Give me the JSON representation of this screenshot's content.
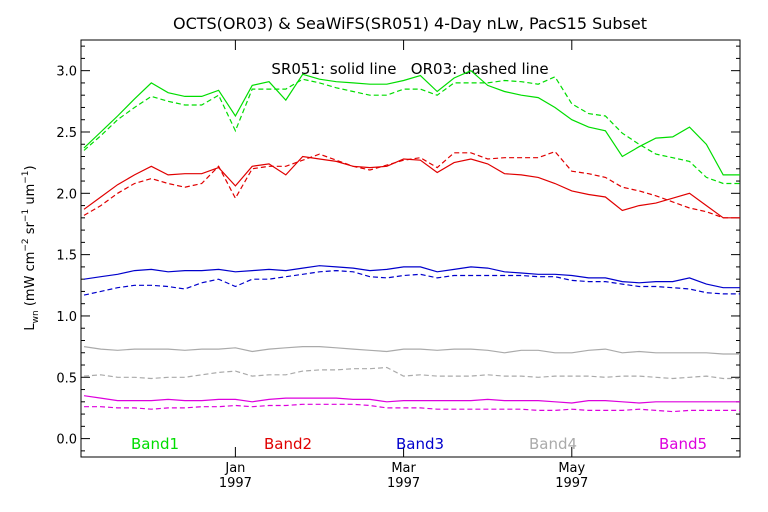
{
  "chart_data": {
    "type": "line",
    "title": "OCTS(OR03) & SeaWiFS(SR051) 4-Day nLw, PacS15 Subset",
    "annotation": "SR051: solid line   OR03: dashed line",
    "ylabel": "L_wn (mW cm^-2 sr^-1 um^-1)",
    "ylabel_parts": {
      "main": "L",
      "sub": "wn",
      "unit_open": " (mW cm",
      "exp1": "−2",
      "mid1": " sr",
      "exp2": "−1",
      "mid2": " um",
      "exp3": "−1",
      "unit_close": ")"
    },
    "ylim": [
      -0.15,
      3.25
    ],
    "yticks": [
      "0.0",
      "0.5",
      "1.0",
      "1.5",
      "2.0",
      "2.5",
      "3.0"
    ],
    "ytick_values": [
      0.0,
      0.5,
      1.0,
      1.5,
      2.0,
      2.5,
      3.0
    ],
    "xlim": [
      0,
      39
    ],
    "xticks": [
      {
        "label": "Jan",
        "year": "1997",
        "x": 9
      },
      {
        "label": "Mar",
        "year": "1997",
        "x": 19
      },
      {
        "label": "May",
        "year": "1997",
        "x": 29
      }
    ],
    "x": [
      0,
      1,
      2,
      3,
      4,
      5,
      6,
      7,
      8,
      9,
      10,
      11,
      12,
      13,
      14,
      15,
      16,
      17,
      18,
      19,
      20,
      21,
      22,
      23,
      24,
      25,
      26,
      27,
      28,
      29,
      30,
      31,
      32,
      33,
      34,
      35,
      36,
      37,
      38,
      39
    ],
    "series": [
      {
        "name": "Band1",
        "color": "#00dd00",
        "solid": [
          2.37,
          2.5,
          2.63,
          2.77,
          2.9,
          2.82,
          2.79,
          2.79,
          2.84,
          2.63,
          2.88,
          2.91,
          2.76,
          2.97,
          2.93,
          2.91,
          2.9,
          2.89,
          2.89,
          2.92,
          2.96,
          2.83,
          2.94,
          3.0,
          2.88,
          2.83,
          2.8,
          2.78,
          2.7,
          2.6,
          2.54,
          2.51,
          2.3,
          2.38,
          2.45,
          2.46,
          2.54,
          2.4,
          2.15,
          2.15
        ],
        "dashed": [
          2.35,
          2.47,
          2.6,
          2.7,
          2.79,
          2.75,
          2.72,
          2.72,
          2.8,
          2.51,
          2.85,
          2.85,
          2.85,
          2.93,
          2.9,
          2.86,
          2.83,
          2.8,
          2.8,
          2.85,
          2.85,
          2.8,
          2.9,
          2.9,
          2.9,
          2.92,
          2.91,
          2.89,
          2.95,
          2.73,
          2.65,
          2.63,
          2.49,
          2.4,
          2.32,
          2.29,
          2.26,
          2.13,
          2.08,
          2.08
        ]
      },
      {
        "name": "Band2",
        "color": "#e00000",
        "solid": [
          1.87,
          1.97,
          2.07,
          2.15,
          2.22,
          2.15,
          2.16,
          2.16,
          2.21,
          2.06,
          2.22,
          2.24,
          2.15,
          2.3,
          2.28,
          2.26,
          2.22,
          2.21,
          2.22,
          2.28,
          2.27,
          2.17,
          2.25,
          2.28,
          2.24,
          2.16,
          2.15,
          2.13,
          2.08,
          2.02,
          1.99,
          1.97,
          1.86,
          1.9,
          1.92,
          1.96,
          2.0,
          1.9,
          1.8,
          1.8
        ],
        "dashed": [
          1.82,
          1.9,
          2.0,
          2.08,
          2.12,
          2.08,
          2.05,
          2.08,
          2.22,
          1.96,
          2.2,
          2.22,
          2.22,
          2.27,
          2.32,
          2.27,
          2.22,
          2.19,
          2.23,
          2.27,
          2.29,
          2.21,
          2.33,
          2.33,
          2.28,
          2.29,
          2.29,
          2.29,
          2.34,
          2.18,
          2.16,
          2.13,
          2.05,
          2.02,
          1.98,
          1.93,
          1.88,
          1.85,
          1.8,
          1.8
        ]
      },
      {
        "name": "Band3",
        "color": "#0000cc",
        "solid": [
          1.3,
          1.32,
          1.34,
          1.37,
          1.38,
          1.36,
          1.37,
          1.37,
          1.38,
          1.36,
          1.37,
          1.38,
          1.37,
          1.39,
          1.41,
          1.4,
          1.39,
          1.37,
          1.38,
          1.4,
          1.4,
          1.36,
          1.38,
          1.4,
          1.39,
          1.36,
          1.35,
          1.34,
          1.34,
          1.33,
          1.31,
          1.31,
          1.28,
          1.27,
          1.28,
          1.28,
          1.31,
          1.26,
          1.23,
          1.23
        ],
        "dashed": [
          1.17,
          1.2,
          1.23,
          1.25,
          1.25,
          1.24,
          1.22,
          1.27,
          1.3,
          1.24,
          1.3,
          1.3,
          1.32,
          1.34,
          1.36,
          1.37,
          1.36,
          1.32,
          1.31,
          1.33,
          1.34,
          1.31,
          1.33,
          1.33,
          1.33,
          1.33,
          1.33,
          1.32,
          1.32,
          1.29,
          1.28,
          1.28,
          1.26,
          1.24,
          1.24,
          1.23,
          1.22,
          1.19,
          1.18,
          1.18
        ]
      },
      {
        "name": "Band4",
        "color": "#aaaaaa",
        "solid": [
          0.75,
          0.73,
          0.72,
          0.73,
          0.73,
          0.73,
          0.72,
          0.73,
          0.73,
          0.74,
          0.71,
          0.73,
          0.74,
          0.75,
          0.75,
          0.74,
          0.73,
          0.72,
          0.71,
          0.73,
          0.73,
          0.72,
          0.73,
          0.73,
          0.72,
          0.7,
          0.72,
          0.72,
          0.7,
          0.7,
          0.72,
          0.73,
          0.7,
          0.71,
          0.7,
          0.7,
          0.7,
          0.7,
          0.69,
          0.69
        ],
        "dashed": [
          0.51,
          0.52,
          0.5,
          0.5,
          0.49,
          0.5,
          0.5,
          0.52,
          0.54,
          0.55,
          0.51,
          0.52,
          0.52,
          0.55,
          0.56,
          0.56,
          0.57,
          0.57,
          0.58,
          0.51,
          0.52,
          0.51,
          0.51,
          0.51,
          0.52,
          0.51,
          0.51,
          0.5,
          0.51,
          0.51,
          0.51,
          0.5,
          0.51,
          0.51,
          0.5,
          0.49,
          0.5,
          0.51,
          0.49,
          0.49
        ]
      },
      {
        "name": "Band5",
        "color": "#dd00dd",
        "solid": [
          0.35,
          0.33,
          0.31,
          0.31,
          0.31,
          0.32,
          0.31,
          0.31,
          0.32,
          0.32,
          0.3,
          0.32,
          0.33,
          0.33,
          0.33,
          0.33,
          0.32,
          0.32,
          0.3,
          0.31,
          0.31,
          0.31,
          0.31,
          0.31,
          0.32,
          0.31,
          0.31,
          0.31,
          0.3,
          0.29,
          0.31,
          0.31,
          0.3,
          0.29,
          0.3,
          0.3,
          0.3,
          0.3,
          0.3,
          0.3
        ],
        "dashed": [
          0.26,
          0.26,
          0.25,
          0.25,
          0.24,
          0.25,
          0.25,
          0.26,
          0.26,
          0.27,
          0.26,
          0.27,
          0.27,
          0.28,
          0.28,
          0.28,
          0.28,
          0.27,
          0.25,
          0.25,
          0.25,
          0.24,
          0.24,
          0.24,
          0.24,
          0.24,
          0.24,
          0.23,
          0.23,
          0.24,
          0.23,
          0.23,
          0.23,
          0.24,
          0.23,
          0.22,
          0.23,
          0.23,
          0.23,
          0.23
        ]
      }
    ]
  }
}
